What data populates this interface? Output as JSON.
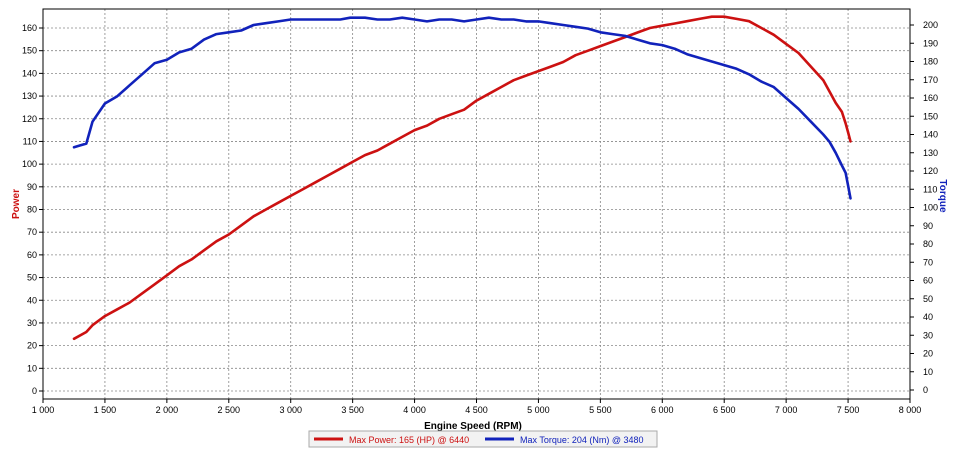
{
  "chart_data": {
    "type": "line",
    "xlabel": "Engine Speed (RPM)",
    "ylabel_left": "Power",
    "ylabel_right": "Torque",
    "xlim": [
      1000,
      8000
    ],
    "ylim_left": [
      0,
      165
    ],
    "ylim_right": [
      0,
      205
    ],
    "x_ticks": [
      "1 000",
      "1 500",
      "2 000",
      "2 500",
      "3 000",
      "3 500",
      "4 000",
      "4 500",
      "5 000",
      "5 500",
      "6 000",
      "6 500",
      "7 000",
      "7 500",
      "8 000"
    ],
    "y_ticks_left": [
      "0",
      "10",
      "20",
      "30",
      "40",
      "50",
      "60",
      "70",
      "80",
      "90",
      "100",
      "110",
      "120",
      "130",
      "140",
      "150",
      "160"
    ],
    "y_ticks_right": [
      "0",
      "10",
      "20",
      "30",
      "40",
      "50",
      "60",
      "70",
      "80",
      "90",
      "100",
      "110",
      "120",
      "130",
      "140",
      "150",
      "160",
      "170",
      "180",
      "190",
      "200"
    ],
    "grid": true,
    "colors": {
      "power": "#cc1111",
      "torque": "#1122bb",
      "left_axis_label": "#cc1111",
      "right_axis_label": "#1122bb"
    },
    "series": [
      {
        "name": "Max Power: 165 (HP) @ 6440",
        "axis": "left",
        "x": [
          1250,
          1350,
          1400,
          1500,
          1600,
          1700,
          1800,
          1900,
          2000,
          2100,
          2200,
          2300,
          2400,
          2500,
          2600,
          2700,
          2800,
          2900,
          3000,
          3100,
          3200,
          3300,
          3400,
          3500,
          3600,
          3700,
          3800,
          3900,
          4000,
          4100,
          4200,
          4300,
          4400,
          4500,
          4600,
          4700,
          4800,
          4900,
          5000,
          5100,
          5200,
          5300,
          5400,
          5500,
          5600,
          5700,
          5800,
          5900,
          6000,
          6100,
          6200,
          6300,
          6400,
          6500,
          6600,
          6700,
          6800,
          6900,
          7000,
          7100,
          7200,
          7300,
          7350,
          7400,
          7450,
          7480,
          7500,
          7520
        ],
        "y": [
          23,
          26,
          29,
          33,
          36,
          39,
          43,
          47,
          51,
          55,
          58,
          62,
          66,
          69,
          73,
          77,
          80,
          83,
          86,
          89,
          92,
          95,
          98,
          101,
          104,
          106,
          109,
          112,
          115,
          117,
          120,
          122,
          124,
          128,
          131,
          134,
          137,
          139,
          141,
          143,
          145,
          148,
          150,
          152,
          154,
          156,
          158,
          160,
          161,
          162,
          163,
          164,
          165,
          165,
          164,
          163,
          160,
          157,
          153,
          149,
          143,
          137,
          132,
          127,
          123,
          118,
          114,
          110
        ]
      },
      {
        "name": "Max Torque: 204 (Nm) @ 3480",
        "axis": "right",
        "x": [
          1250,
          1300,
          1350,
          1400,
          1500,
          1600,
          1700,
          1800,
          1900,
          2000,
          2100,
          2200,
          2300,
          2400,
          2500,
          2600,
          2700,
          2800,
          2900,
          3000,
          3100,
          3200,
          3300,
          3400,
          3480,
          3600,
          3700,
          3800,
          3900,
          4000,
          4100,
          4200,
          4300,
          4400,
          4500,
          4600,
          4700,
          4800,
          4900,
          5000,
          5100,
          5200,
          5300,
          5400,
          5500,
          5600,
          5700,
          5800,
          5900,
          6000,
          6100,
          6200,
          6300,
          6400,
          6500,
          6600,
          6700,
          6800,
          6900,
          7000,
          7100,
          7200,
          7300,
          7350,
          7400,
          7450,
          7480,
          7500,
          7520
        ],
        "y": [
          133,
          134,
          135,
          147,
          157,
          161,
          167,
          173,
          179,
          181,
          185,
          187,
          192,
          195,
          196,
          197,
          200,
          201,
          202,
          203,
          203,
          203,
          203,
          203,
          204,
          204,
          203,
          203,
          204,
          203,
          202,
          203,
          203,
          202,
          203,
          204,
          203,
          203,
          202,
          202,
          201,
          200,
          199,
          198,
          196,
          195,
          194,
          192,
          190,
          189,
          187,
          184,
          182,
          180,
          178,
          176,
          173,
          169,
          166,
          160,
          154,
          147,
          140,
          136,
          130,
          123,
          119,
          112,
          105
        ]
      }
    ]
  }
}
